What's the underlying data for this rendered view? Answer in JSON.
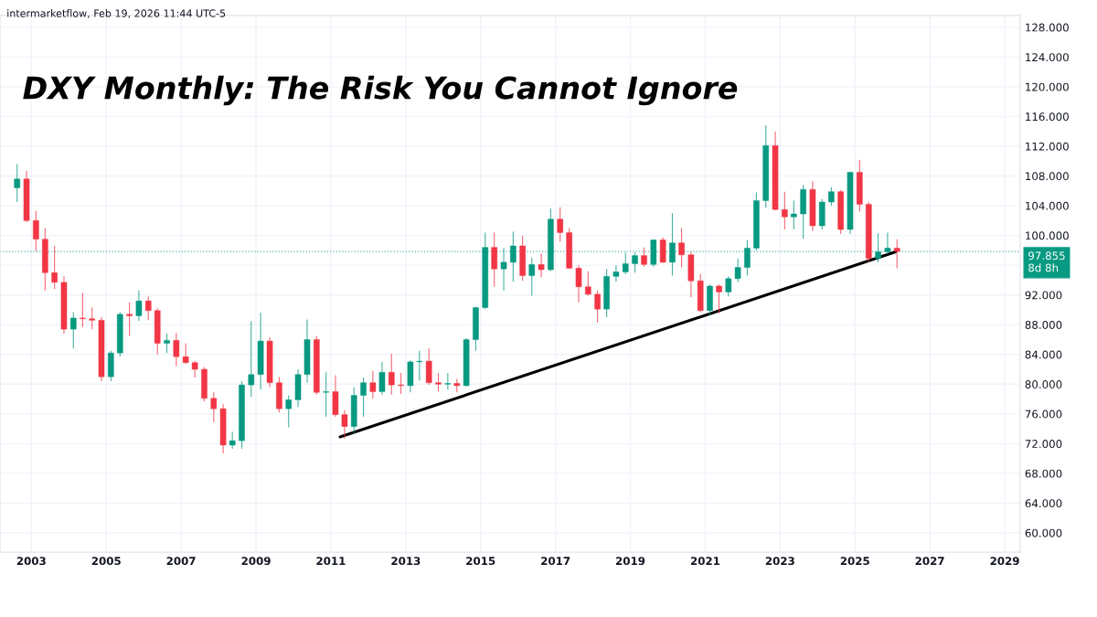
{
  "chart_data": {
    "type": "candlestick",
    "title": "DXY Monthly: The Risk You Cannot Ignore",
    "annotations": [
      "intermarketflow, Feb 19, 2026 11:44 UTC-5",
      "8d 8h"
    ],
    "x": [
      "2002-08-15",
      "2002-11-15",
      "2003-02-15",
      "2003-05-15",
      "2003-08-15",
      "2003-11-15",
      "2004-02-15",
      "2004-05-15",
      "2004-08-15",
      "2004-11-15",
      "2005-02-15",
      "2005-05-15",
      "2005-08-15",
      "2005-11-15",
      "2006-02-15",
      "2006-05-15",
      "2006-08-15",
      "2006-11-15",
      "2007-02-15",
      "2007-05-15",
      "2007-08-15",
      "2007-11-15",
      "2008-02-15",
      "2008-05-15",
      "2008-08-15",
      "2008-11-15",
      "2009-02-15",
      "2009-05-15",
      "2009-08-15",
      "2009-11-15",
      "2010-02-15",
      "2010-05-15",
      "2010-08-15",
      "2010-11-15",
      "2011-02-15",
      "2011-05-15",
      "2011-08-15",
      "2011-11-15",
      "2012-02-15",
      "2012-05-15",
      "2012-08-15",
      "2012-11-15",
      "2013-02-15",
      "2013-05-15",
      "2013-08-15",
      "2013-11-15",
      "2014-02-15",
      "2014-05-15",
      "2014-08-15",
      "2014-11-15",
      "2015-02-15",
      "2015-05-15",
      "2015-08-15",
      "2015-11-15",
      "2016-02-15",
      "2016-05-15",
      "2016-08-15",
      "2016-11-15",
      "2017-02-15",
      "2017-05-15",
      "2017-08-15",
      "2017-11-15",
      "2018-02-15",
      "2018-05-15",
      "2018-08-15",
      "2018-11-15",
      "2019-02-15",
      "2019-05-15",
      "2019-08-15",
      "2019-11-15",
      "2020-02-15",
      "2020-05-15",
      "2020-08-15",
      "2020-11-15",
      "2021-02-15",
      "2021-05-15",
      "2021-08-15",
      "2021-11-15",
      "2022-02-15",
      "2022-05-15",
      "2022-08-15",
      "2022-11-15",
      "2023-02-15",
      "2023-05-15",
      "2023-08-15",
      "2023-11-15",
      "2024-02-15",
      "2024-05-15",
      "2024-08-15",
      "2024-11-15",
      "2025-02-15",
      "2025-05-15",
      "2025-08-15",
      "2025-11-15",
      "2026-02-15"
    ],
    "ohlc": [
      [
        106.4,
        109.6,
        104.5,
        107.6
      ],
      [
        107.6,
        108.7,
        101.8,
        102.0
      ],
      [
        102.0,
        103.3,
        97.9,
        99.5
      ],
      [
        99.5,
        101.0,
        92.6,
        95.0
      ],
      [
        95.0,
        98.6,
        92.8,
        93.7
      ],
      [
        93.7,
        94.5,
        86.8,
        87.4
      ],
      [
        87.4,
        89.7,
        84.8,
        88.9
      ],
      [
        88.9,
        92.3,
        87.7,
        88.8
      ],
      [
        88.8,
        90.3,
        87.4,
        88.6
      ],
      [
        88.6,
        89.0,
        80.4,
        81.0
      ],
      [
        81.0,
        84.5,
        80.4,
        84.2
      ],
      [
        84.2,
        89.7,
        83.7,
        89.4
      ],
      [
        89.4,
        91.0,
        86.5,
        89.2
      ],
      [
        89.2,
        92.6,
        88.5,
        91.2
      ],
      [
        91.2,
        91.8,
        88.6,
        89.9
      ],
      [
        89.9,
        90.2,
        84.0,
        85.5
      ],
      [
        85.5,
        86.8,
        84.2,
        85.9
      ],
      [
        85.9,
        86.9,
        82.4,
        83.7
      ],
      [
        83.7,
        85.5,
        82.7,
        82.9
      ],
      [
        82.9,
        83.1,
        80.9,
        82.0
      ],
      [
        82.0,
        82.3,
        77.7,
        78.1
      ],
      [
        78.1,
        78.9,
        74.9,
        76.7
      ],
      [
        76.7,
        77.3,
        70.7,
        71.8
      ],
      [
        71.8,
        73.6,
        71.3,
        72.4
      ],
      [
        72.4,
        80.4,
        71.3,
        79.9
      ],
      [
        79.9,
        88.5,
        78.3,
        81.3
      ],
      [
        81.3,
        89.6,
        79.3,
        85.8
      ],
      [
        85.8,
        86.3,
        79.6,
        80.2
      ],
      [
        80.2,
        81.0,
        76.2,
        76.7
      ],
      [
        76.7,
        78.5,
        74.2,
        77.9
      ],
      [
        77.9,
        82.0,
        76.9,
        81.3
      ],
      [
        81.3,
        88.7,
        80.2,
        86.0
      ],
      [
        86.0,
        86.5,
        78.6,
        78.9
      ],
      [
        78.9,
        81.6,
        75.6,
        79.0
      ],
      [
        79.0,
        81.2,
        75.6,
        75.9
      ],
      [
        75.9,
        76.5,
        72.7,
        74.3
      ],
      [
        74.3,
        79.6,
        73.4,
        78.5
      ],
      [
        78.5,
        80.9,
        75.6,
        80.2
      ],
      [
        80.2,
        81.8,
        78.1,
        79.0
      ],
      [
        79.0,
        83.0,
        78.6,
        81.6
      ],
      [
        81.6,
        84.1,
        78.6,
        79.9
      ],
      [
        79.9,
        81.5,
        78.7,
        79.8
      ],
      [
        79.8,
        83.2,
        78.9,
        83.0
      ],
      [
        83.0,
        84.5,
        80.5,
        83.1
      ],
      [
        83.1,
        84.8,
        79.9,
        80.2
      ],
      [
        80.2,
        81.5,
        79.0,
        80.0
      ],
      [
        80.0,
        81.5,
        79.3,
        80.1
      ],
      [
        80.1,
        80.7,
        78.9,
        79.8
      ],
      [
        79.8,
        86.2,
        79.7,
        86.0
      ],
      [
        86.0,
        90.4,
        84.5,
        90.3
      ],
      [
        90.3,
        100.4,
        90.1,
        98.4
      ],
      [
        98.4,
        100.4,
        93.1,
        95.5
      ],
      [
        95.5,
        98.3,
        92.6,
        96.4
      ],
      [
        96.4,
        100.5,
        93.8,
        98.6
      ],
      [
        98.6,
        100.0,
        93.9,
        94.6
      ],
      [
        94.6,
        97.0,
        91.9,
        96.1
      ],
      [
        96.1,
        97.6,
        94.4,
        95.4
      ],
      [
        95.4,
        103.6,
        95.2,
        102.2
      ],
      [
        102.2,
        103.8,
        99.2,
        100.4
      ],
      [
        100.4,
        101.0,
        95.5,
        95.6
      ],
      [
        95.6,
        96.0,
        91.0,
        93.1
      ],
      [
        93.1,
        95.2,
        91.9,
        92.1
      ],
      [
        92.1,
        92.6,
        88.3,
        90.1
      ],
      [
        90.1,
        95.5,
        89.0,
        94.5
      ],
      [
        94.5,
        96.0,
        93.8,
        95.1
      ],
      [
        95.1,
        97.7,
        94.8,
        96.2
      ],
      [
        96.2,
        97.7,
        95.0,
        97.3
      ],
      [
        97.3,
        98.4,
        95.8,
        96.1
      ],
      [
        96.1,
        99.5,
        95.8,
        99.4
      ],
      [
        99.4,
        99.7,
        96.3,
        96.4
      ],
      [
        96.4,
        103.0,
        94.6,
        99.0
      ],
      [
        99.0,
        101.0,
        95.7,
        97.4
      ],
      [
        97.4,
        97.8,
        91.7,
        93.9
      ],
      [
        93.9,
        94.8,
        89.7,
        89.9
      ],
      [
        89.9,
        93.4,
        89.2,
        93.2
      ],
      [
        93.2,
        93.4,
        89.5,
        92.4
      ],
      [
        92.4,
        94.5,
        91.8,
        94.2
      ],
      [
        94.2,
        96.9,
        93.7,
        95.7
      ],
      [
        95.7,
        99.4,
        94.6,
        98.3
      ],
      [
        98.3,
        105.8,
        98.0,
        104.7
      ],
      [
        104.7,
        114.8,
        103.7,
        112.1
      ],
      [
        112.1,
        114.0,
        103.4,
        103.5
      ],
      [
        103.5,
        105.9,
        100.8,
        102.5
      ],
      [
        102.5,
        104.7,
        100.8,
        102.9
      ],
      [
        102.9,
        106.8,
        99.6,
        106.2
      ],
      [
        106.2,
        107.3,
        100.6,
        101.3
      ],
      [
        101.3,
        104.9,
        100.8,
        104.5
      ],
      [
        104.5,
        106.5,
        104.0,
        105.9
      ],
      [
        105.9,
        106.1,
        100.2,
        100.8
      ],
      [
        100.8,
        108.6,
        100.2,
        108.5
      ],
      [
        108.5,
        110.2,
        103.2,
        104.2
      ],
      [
        104.2,
        104.5,
        96.4,
        96.9
      ],
      [
        96.9,
        100.3,
        96.4,
        97.8
      ],
      [
        97.8,
        100.4,
        97.5,
        98.3
      ],
      [
        98.3,
        99.5,
        95.6,
        97.855
      ]
    ],
    "colors": [
      "#089981",
      "#f23645",
      "#f23645",
      "#f23645",
      "#f23645",
      "#f23645",
      "#089981",
      "#f23645",
      "#f23645",
      "#f23645",
      "#089981",
      "#089981",
      "#f23645",
      "#089981",
      "#f23645",
      "#f23645",
      "#089981",
      "#f23645",
      "#f23645",
      "#f23645",
      "#f23645",
      "#f23645",
      "#f23645",
      "#089981",
      "#089981",
      "#089981",
      "#089981",
      "#f23645",
      "#f23645",
      "#089981",
      "#089981",
      "#089981",
      "#f23645",
      "#089981",
      "#f23645",
      "#f23645",
      "#089981",
      "#089981",
      "#f23645",
      "#089981",
      "#f23645",
      "#f23645",
      "#089981",
      "#089981",
      "#f23645",
      "#f23645",
      "#089981",
      "#f23645",
      "#089981",
      "#089981",
      "#089981",
      "#f23645",
      "#089981",
      "#089981",
      "#f23645",
      "#089981",
      "#f23645",
      "#089981",
      "#f23645",
      "#f23645",
      "#f23645",
      "#f23645",
      "#f23645",
      "#089981",
      "#089981",
      "#089981",
      "#089981",
      "#f23645",
      "#089981",
      "#f23645",
      "#089981",
      "#f23645",
      "#f23645",
      "#f23645",
      "#089981",
      "#f23645",
      "#089981",
      "#089981",
      "#089981",
      "#089981",
      "#089981",
      "#f23645",
      "#f23645",
      "#089981",
      "#089981",
      "#f23645",
      "#089981",
      "#089981",
      "#f23645",
      "#089981",
      "#f23645",
      "#f23645",
      "#089981",
      "#089981",
      "#f23645"
    ],
    "series": [
      {
        "type": "line",
        "color": "#000000",
        "x": [
          "2011-04",
          "2026-02"
        ],
        "values": [
          72.9,
          97.8
        ]
      }
    ],
    "ref_lines": [
      {
        "axis": "y",
        "value": 97.855,
        "label": "97.855",
        "color": "#089981",
        "line_style": "dotted"
      }
    ],
    "xlim": [
      "2002-03",
      "2029-06"
    ],
    "xticks": [
      "2003",
      "2005",
      "2007",
      "2009",
      "2011",
      "2013",
      "2015",
      "2017",
      "2019",
      "2021",
      "2023",
      "2025",
      "2027",
      "2029"
    ],
    "ylim": [
      57.4,
      129.6
    ],
    "yticks": [
      {
        "value": 60,
        "label": "60.000"
      },
      {
        "value": 64,
        "label": "64.000"
      },
      {
        "value": 68,
        "label": "68.000"
      },
      {
        "value": 72,
        "label": "72.000"
      },
      {
        "value": 76,
        "label": "76.000"
      },
      {
        "value": 80,
        "label": "80.000"
      },
      {
        "value": 84,
        "label": "84.000"
      },
      {
        "value": 88,
        "label": "88.000"
      },
      {
        "value": 92,
        "label": "92.000"
      },
      {
        "value": 96,
        "label": null
      },
      {
        "value": 100,
        "label": "100.000"
      },
      {
        "value": 104,
        "label": "104.000"
      },
      {
        "value": 108,
        "label": "108.000"
      },
      {
        "value": 112,
        "label": "112.000"
      },
      {
        "value": 116,
        "label": "116.000"
      },
      {
        "value": 120,
        "label": "120.000"
      },
      {
        "value": 124,
        "label": "124.000"
      },
      {
        "value": 128,
        "label": "128.000"
      }
    ],
    "grid": true,
    "legend": false
  }
}
